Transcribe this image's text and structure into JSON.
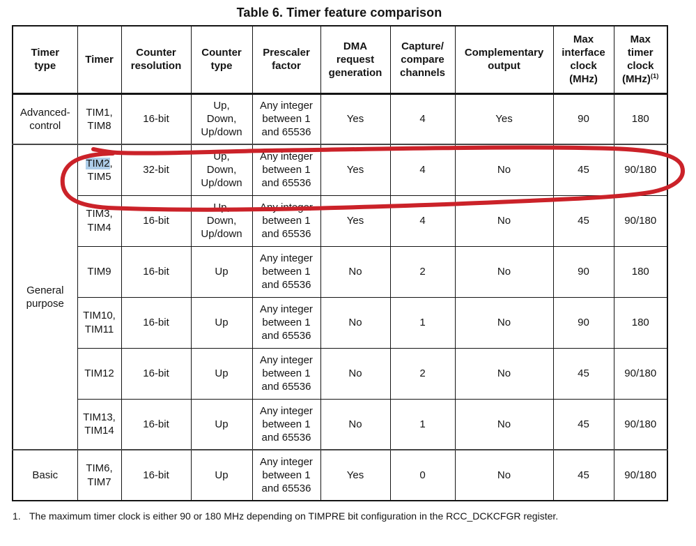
{
  "title": "Table 6. Timer feature comparison",
  "table": {
    "columns": [
      {
        "id": "timer-type",
        "label": "Timer\ntype"
      },
      {
        "id": "timer",
        "label": "Timer"
      },
      {
        "id": "counter-resolution",
        "label": "Counter\nresolution"
      },
      {
        "id": "counter-type",
        "label": "Counter\ntype"
      },
      {
        "id": "prescaler-factor",
        "label": "Prescaler\nfactor"
      },
      {
        "id": "dma-request",
        "label": "DMA\nrequest\ngeneration"
      },
      {
        "id": "capture-compare",
        "label": "Capture/\ncompare\nchannels"
      },
      {
        "id": "complementary",
        "label": "Complementary\noutput"
      },
      {
        "id": "max-interface-clock",
        "label": "Max\ninterface\nclock\n(MHz)"
      },
      {
        "id": "max-timer-clock",
        "label": "Max\ntimer\nclock\n(MHz)",
        "footnote_ref": "(1)"
      }
    ],
    "rows": [
      {
        "group": {
          "label": "Advanced-\ncontrol",
          "span": 1
        },
        "timer": "TIM1,\nTIM8",
        "resolution": "16-bit",
        "counter_type": "Up,\nDown,\nUp/down",
        "prescaler": "Any integer\nbetween 1\nand 65536",
        "dma": "Yes",
        "channels": "4",
        "complementary": "Yes",
        "max_interface_clock": "90",
        "max_timer_clock": "180"
      },
      {
        "group": {
          "label": "General\npurpose",
          "span": 6
        },
        "timer_selected": "TIM2",
        "timer": ",\nTIM5",
        "resolution": "32-bit",
        "counter_type": "Up,\nDown,\nUp/down",
        "prescaler": "Any integer\nbetween 1\nand 65536",
        "dma": "Yes",
        "channels": "4",
        "complementary": "No",
        "max_interface_clock": "45",
        "max_timer_clock": "90/180"
      },
      {
        "timer": "TIM3,\nTIM4",
        "resolution": "16-bit",
        "counter_type": "Up,\nDown,\nUp/down",
        "prescaler": "Any integer\nbetween 1\nand 65536",
        "dma": "Yes",
        "channels": "4",
        "complementary": "No",
        "max_interface_clock": "45",
        "max_timer_clock": "90/180"
      },
      {
        "timer": "TIM9",
        "resolution": "16-bit",
        "counter_type": "Up",
        "prescaler": "Any integer\nbetween 1\nand 65536",
        "dma": "No",
        "channels": "2",
        "complementary": "No",
        "max_interface_clock": "90",
        "max_timer_clock": "180"
      },
      {
        "timer": "TIM10,\nTIM11",
        "resolution": "16-bit",
        "counter_type": "Up",
        "prescaler": "Any integer\nbetween 1\nand 65536",
        "dma": "No",
        "channels": "1",
        "complementary": "No",
        "max_interface_clock": "90",
        "max_timer_clock": "180"
      },
      {
        "timer": "TIM12",
        "resolution": "16-bit",
        "counter_type": "Up",
        "prescaler": "Any integer\nbetween 1\nand 65536",
        "dma": "No",
        "channels": "2",
        "complementary": "No",
        "max_interface_clock": "45",
        "max_timer_clock": "90/180"
      },
      {
        "timer": "TIM13,\nTIM14",
        "resolution": "16-bit",
        "counter_type": "Up",
        "prescaler": "Any integer\nbetween 1\nand 65536",
        "dma": "No",
        "channels": "1",
        "complementary": "No",
        "max_interface_clock": "45",
        "max_timer_clock": "90/180"
      },
      {
        "group": {
          "label": "Basic",
          "span": 1
        },
        "timer": "TIM6,\nTIM7",
        "resolution": "16-bit",
        "counter_type": "Up",
        "prescaler": "Any integer\nbetween 1\nand 65536",
        "dma": "Yes",
        "channels": "0",
        "complementary": "No",
        "max_interface_clock": "45",
        "max_timer_clock": "90/180"
      }
    ]
  },
  "footnote": {
    "number": "1.",
    "text": "The maximum timer clock is either 90 or 180 MHz depending on TIMPRE bit configuration in the RCC_DCKCFGR register."
  },
  "annotation": {
    "type": "hand-drawn-red-circle",
    "circled_row": "TIM2, TIM5",
    "color": "#cb2229",
    "selected_text": "TIM2",
    "selection_color": "#aecde9"
  }
}
